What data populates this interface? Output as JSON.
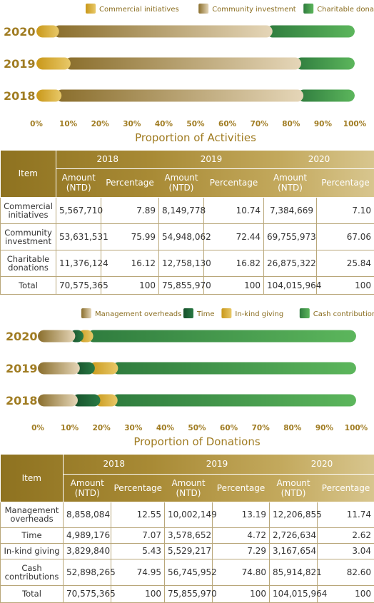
{
  "chart_data": [
    {
      "type": "bar",
      "orientation": "horizontal-stacked-100",
      "categories": [
        "2020",
        "2019",
        "2018"
      ],
      "series": [
        {
          "name": "Commercial initiatives",
          "values": [
            7.1,
            10.74,
            7.89
          ]
        },
        {
          "name": "Community investment",
          "values": [
            67.06,
            72.44,
            75.99
          ]
        },
        {
          "name": "Charitable donations",
          "values": [
            25.84,
            16.82,
            16.12
          ]
        }
      ],
      "xlabel": "Proportion of Activities",
      "xlim": [
        0,
        100
      ],
      "xticks": [
        "0%",
        "10%",
        "20%",
        "30%",
        "40%",
        "50%",
        "60%",
        "70%",
        "80%",
        "90%",
        "100%"
      ],
      "legend": "top-right",
      "colors": [
        "#d4a61e",
        "#8c7436",
        "#2e8b4a"
      ]
    },
    {
      "type": "bar",
      "orientation": "horizontal-stacked-100",
      "categories": [
        "2020",
        "2019",
        "2018"
      ],
      "series": [
        {
          "name": "Management overheads",
          "values": [
            11.74,
            13.19,
            12.55
          ]
        },
        {
          "name": "Time",
          "values": [
            2.62,
            4.72,
            7.07
          ]
        },
        {
          "name": "In-kind giving",
          "values": [
            3.04,
            7.29,
            5.43
          ]
        },
        {
          "name": "Cash contributions",
          "values": [
            82.6,
            74.8,
            74.95
          ]
        }
      ],
      "xlabel": "Proportion of Donations",
      "xlim": [
        0,
        100
      ],
      "xticks": [
        "0%",
        "10%",
        "20%",
        "30%",
        "40%",
        "50%",
        "60%",
        "70%",
        "80%",
        "90%",
        "100%"
      ],
      "legend": "top-right",
      "colors": [
        "#8c7436",
        "#1f6b3a",
        "#d4a61e",
        "#4aa84f"
      ]
    }
  ],
  "table1": {
    "item_header": "Item",
    "years": [
      "2018",
      "2019",
      "2020"
    ],
    "sub_amount": "Amount (NTD)",
    "sub_percentage": "Percentage",
    "rows": [
      {
        "label": "Commercial initiatives",
        "cells": [
          "5,567,710",
          "7.89",
          "8,149,778",
          "10.74",
          "7,384,669",
          "7.10"
        ]
      },
      {
        "label": "Community investment",
        "cells": [
          "53,631,531",
          "75.99",
          "54,948,062",
          "72.44",
          "69,755,973",
          "67.06"
        ]
      },
      {
        "label": "Charitable donations",
        "cells": [
          "11,376,124",
          "16.12",
          "12,758,130",
          "16.82",
          "26,875,322",
          "25.84"
        ]
      },
      {
        "label": "Total",
        "cells": [
          "70,575,365",
          "100",
          "75,855,970",
          "100",
          "104,015,964",
          "100"
        ]
      }
    ]
  },
  "table2": {
    "item_header": "Item",
    "years": [
      "2018",
      "2019",
      "2020"
    ],
    "sub_amount": "Amount (NTD)",
    "sub_percentage": "Percentage",
    "rows": [
      {
        "label": "Management overheads",
        "cells": [
          "8,858,084",
          "12.55",
          "10,002,149",
          "13.19",
          "12,206,855",
          "11.74"
        ]
      },
      {
        "label": "Time",
        "cells": [
          "4,989,176",
          "7.07",
          "3,578,652",
          "4.72",
          "2,726,634",
          "2.62"
        ]
      },
      {
        "label": "In-kind giving",
        "cells": [
          "3,829,840",
          "5.43",
          "5,529,217",
          "7.29",
          "3,167,654",
          "3.04"
        ]
      },
      {
        "label": "Cash contributions",
        "cells": [
          "52,898,265",
          "74.95",
          "56,745,952",
          "74.80",
          "85,914,821",
          "82.60"
        ]
      },
      {
        "label": "Total",
        "cells": [
          "70,575,365",
          "100",
          "75,855,970",
          "100",
          "104,015,964",
          "100"
        ]
      }
    ]
  }
}
